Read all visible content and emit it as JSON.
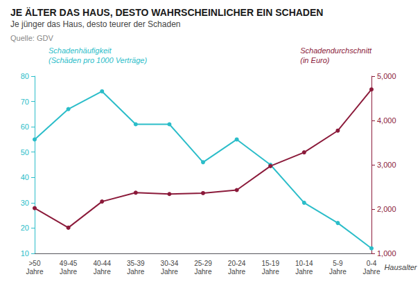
{
  "chart_data": {
    "type": "line",
    "title": "JE ÄLTER DAS HAUS, DESTO WAHRSCHEINLICHER EIN SCHADEN",
    "subtitle": "Je jünger das Haus, desto teurer der Schaden",
    "source": "Quelle: GDV",
    "xlabel": "Hausalter",
    "categories": [
      ">50\nJahre",
      "49-45\nJahre",
      "40-44\nJahre",
      "35-39\nJahre",
      "30-34\nJahre",
      "25-29\nJahre",
      "20-24\nJahre",
      "15-19\nJahre",
      "10-14\nJahre",
      "5-9\nJahre",
      "0-4\nJahre"
    ],
    "series": [
      {
        "name": "Schadenhäufigkeit\n(Schäden pro 1000 Verträge)",
        "color": "#2BBDC9",
        "marker": "circle",
        "values": [
          55,
          67,
          74,
          61,
          61,
          46,
          55,
          45,
          30,
          22,
          12
        ]
      },
      {
        "name": "Schadendurchschnitt\n(in Euro)",
        "color": "#8B1A3A",
        "marker": "circle",
        "axis": "y2",
        "values": [
          2020,
          1580,
          2170,
          2370,
          2340,
          2360,
          2430,
          2970,
          3280,
          3770,
          4700
        ]
      }
    ],
    "ylim": [
      10,
      80
    ],
    "yticks": [
      10,
      20,
      30,
      40,
      50,
      60,
      70,
      80
    ],
    "y2lim": [
      1000,
      5000
    ],
    "y2ticks": [
      1000,
      2000,
      3000,
      4000,
      5000
    ],
    "grid": false
  }
}
